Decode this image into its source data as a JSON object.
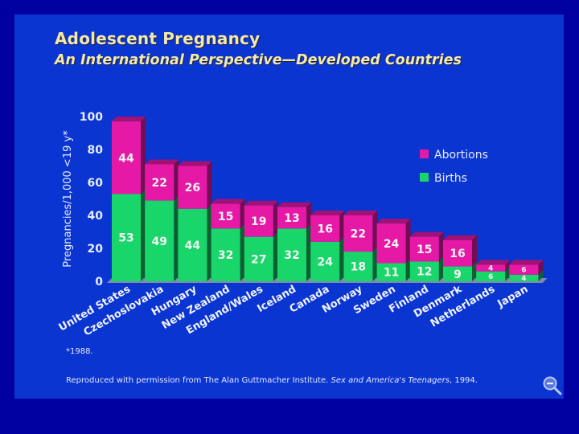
{
  "slide": {
    "title": "Adolescent Pregnancy",
    "subtitle": "An International Perspective—Developed Countries",
    "footnote": "*1988.",
    "credit_prefix": "Reproduced with permission from The Alan Guttmacher Institute. ",
    "credit_book": "Sex and America's Teenagers",
    "credit_suffix": ", 1994.",
    "zoom_icon": "zoom-out-magnifier-icon"
  },
  "colors": {
    "abortions": "#e619a6",
    "births": "#19d66b",
    "background": "#0a35d0",
    "frame": "#0000a0",
    "title": "#f5e9a6"
  },
  "chart_data": {
    "type": "bar",
    "stacked": true,
    "title": "Adolescent Pregnancy",
    "subtitle": "An International Perspective—Developed Countries",
    "xlabel": "",
    "ylabel": "Pregnancies/1,000 <19 y*",
    "ylim": [
      0,
      100
    ],
    "yticks": [
      0,
      20,
      40,
      60,
      80,
      100
    ],
    "grid": false,
    "legend_position": "right",
    "categories": [
      "United States",
      "Czechoslovakia",
      "Hungary",
      "New Zealand",
      "England/Wales",
      "Iceland",
      "Canada",
      "Norway",
      "Sweden",
      "Finland",
      "Denmark",
      "Netherlands",
      "Japan"
    ],
    "series": [
      {
        "name": "Births",
        "values": [
          53,
          49,
          44,
          32,
          27,
          32,
          24,
          18,
          11,
          12,
          9,
          6,
          4
        ]
      },
      {
        "name": "Abortions",
        "values": [
          44,
          22,
          26,
          15,
          19,
          13,
          16,
          22,
          24,
          15,
          16,
          4,
          6
        ]
      }
    ],
    "legend": [
      "Abortions",
      "Births"
    ]
  }
}
